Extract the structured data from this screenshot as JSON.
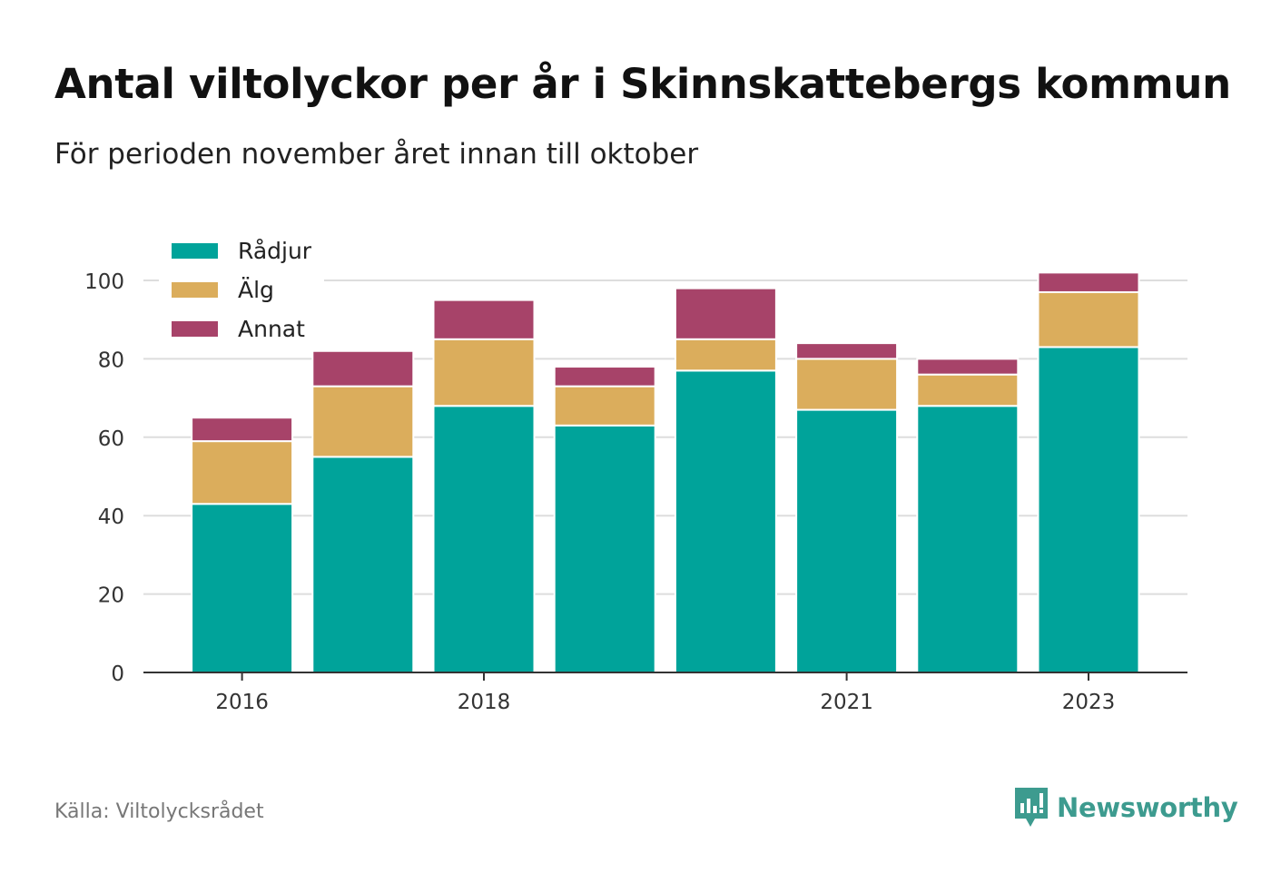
{
  "title": "Antal viltolyckor per år i Skinnskattebergs kommun",
  "subtitle": "För perioden november året innan till oktober",
  "source": "Källa: Viltolycksrådet",
  "brand": "Newsworthy",
  "colors": {
    "Rådjur": "#00a39a",
    "Älg": "#dbad5c",
    "Annat": "#a74369",
    "brand": "#3d9b8f"
  },
  "chart_data": {
    "type": "bar",
    "stacked": true,
    "categories": [
      "2016",
      "2017",
      "2018",
      "2019",
      "2020",
      "2021",
      "2022",
      "2023"
    ],
    "x_tick_labels": [
      "2016",
      "2018",
      "2021",
      "2023"
    ],
    "series": [
      {
        "name": "Rådjur",
        "values": [
          43,
          55,
          68,
          63,
          77,
          67,
          68,
          83
        ]
      },
      {
        "name": "Älg",
        "values": [
          16,
          18,
          17,
          10,
          8,
          13,
          8,
          14
        ]
      },
      {
        "name": "Annat",
        "values": [
          6,
          9,
          10,
          5,
          13,
          4,
          4,
          5
        ]
      }
    ],
    "ylim": [
      0,
      100
    ],
    "yticks": [
      0,
      20,
      40,
      60,
      80,
      100
    ],
    "grid": true,
    "legend": "top-left",
    "xlabel": "",
    "ylabel": ""
  }
}
